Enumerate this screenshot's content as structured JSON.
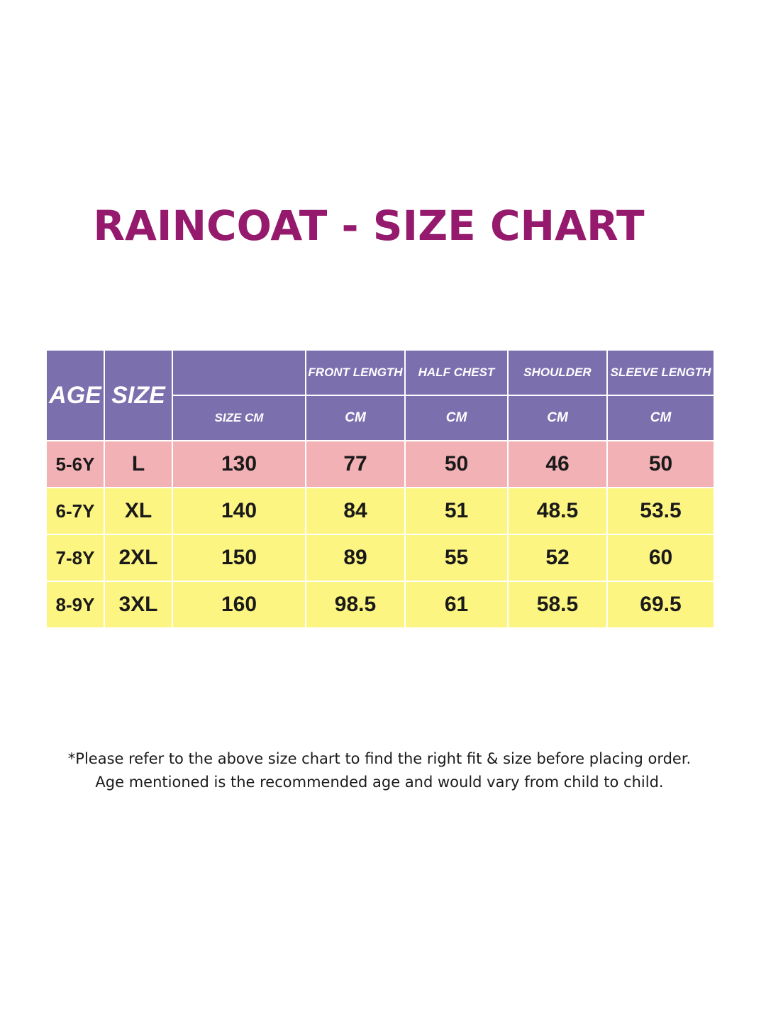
{
  "title": "RAINCOAT - SIZE CHART",
  "table": {
    "headers": {
      "age": "AGE",
      "size": "SIZE",
      "size_cm": "SIZE CM",
      "front_length": "FRONT LENGTH",
      "half_chest": "HALF CHEST",
      "shoulder": "SHOULDER",
      "sleeve_length": "SLEEVE LENGTH",
      "unit": "CM"
    },
    "rows": [
      {
        "age": "5-6Y",
        "size": "L",
        "size_cm": "130",
        "front_length": "77",
        "half_chest": "50",
        "shoulder": "46",
        "sleeve_length": "50"
      },
      {
        "age": "6-7Y",
        "size": "XL",
        "size_cm": "140",
        "front_length": "84",
        "half_chest": "51",
        "shoulder": "48.5",
        "sleeve_length": "53.5"
      },
      {
        "age": "7-8Y",
        "size": "2XL",
        "size_cm": "150",
        "front_length": "89",
        "half_chest": "55",
        "shoulder": "52",
        "sleeve_length": "60"
      },
      {
        "age": "8-9Y",
        "size": "3XL",
        "size_cm": "160",
        "front_length": "98.5",
        "half_chest": "61",
        "shoulder": "58.5",
        "sleeve_length": "69.5"
      }
    ],
    "colors": {
      "header": "#7b6fae",
      "first_row": "#f2b1b5",
      "other_rows": "#fdf582"
    }
  },
  "footnote": {
    "line1": "*Please refer to the above size chart to find the right fit & size before placing order.",
    "line2": "Age mentioned is the recommended age and would vary from child to child."
  },
  "colors": {
    "title": "#95196c"
  }
}
